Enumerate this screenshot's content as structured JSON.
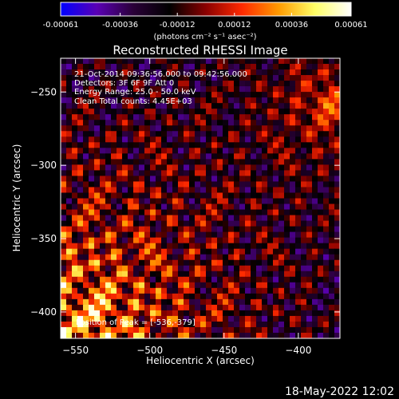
{
  "colorbar": {
    "tick_labels": [
      "-0.00061",
      "-0.00036",
      "-0.00012",
      "0.00012",
      "0.00036",
      "0.00061"
    ],
    "tick_values": [
      -0.00061,
      -0.00036,
      -0.00012,
      0.00012,
      0.00036,
      0.00061
    ],
    "range": [
      -0.00061,
      0.00061
    ],
    "units_label": "(photons cm⁻² s⁻¹ asec⁻²)"
  },
  "colors": {
    "background": "#000000",
    "text": "#ffffff",
    "colormap": [
      "#0000ff",
      "#5a00b4",
      "#2a0038",
      "#000000",
      "#8a0000",
      "#ff2a00",
      "#ff9a00",
      "#ffff66",
      "#ffffff"
    ]
  },
  "chart_data": {
    "type": "heatmap",
    "title": "Reconstructed RHESSI Image",
    "xlabel": "Heliocentric X (arcsec)",
    "ylabel": "Heliocentric Y (arcsec)",
    "xlim": [
      -560,
      -372
    ],
    "ylim": [
      -418,
      -227
    ],
    "x_ticks": [
      -550,
      -500,
      -450,
      -400
    ],
    "x_tick_labels": [
      "−550",
      "−500",
      "−450",
      "−400"
    ],
    "y_ticks": [
      -250,
      -300,
      -350,
      -400
    ],
    "y_tick_labels": [
      "−250",
      "−300",
      "−350",
      "−400"
    ],
    "annotations": [
      "21-Oct-2014 09:36:56.000 to 09:42:56.000",
      "Detectors: 3F 6F 9F  Att 0",
      "Energy Range: 25.0 - 50.0 keV",
      "Clean    Total counts: 4.45E+03"
    ],
    "peak_label": "Position of Peak = [-536,-379]",
    "peak": [
      -536,
      -379
    ],
    "grid": false
  },
  "footer": {
    "date": "18-May-2022 12:02"
  }
}
